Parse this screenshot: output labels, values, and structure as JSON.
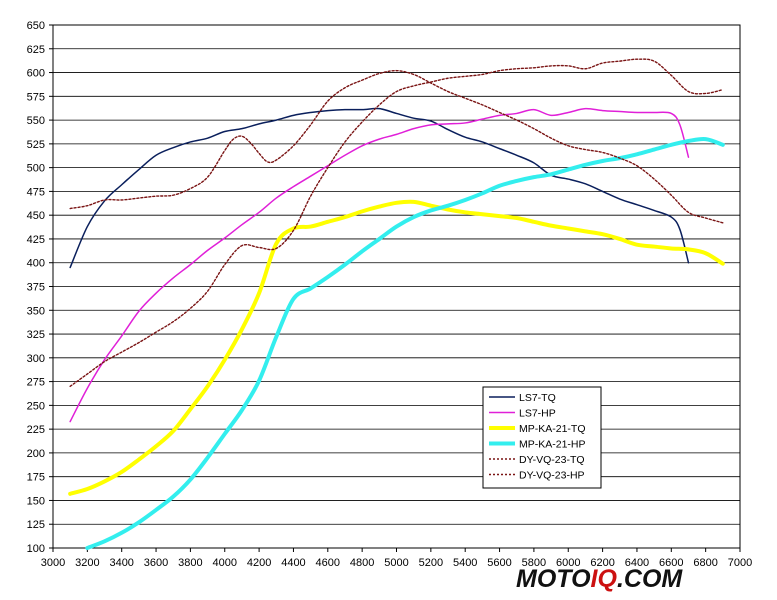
{
  "chart_data": {
    "type": "line",
    "title": "",
    "xlabel": "",
    "ylabel": "",
    "xlim": [
      3000,
      7000
    ],
    "ylim": [
      100,
      650
    ],
    "x_ticks": [
      3000,
      3200,
      3400,
      3600,
      3800,
      4000,
      4200,
      4400,
      4600,
      4800,
      5000,
      5200,
      5400,
      5600,
      5800,
      6000,
      6200,
      6400,
      6600,
      6800,
      7000
    ],
    "y_ticks": [
      100,
      125,
      150,
      175,
      200,
      225,
      250,
      275,
      300,
      325,
      350,
      375,
      400,
      425,
      450,
      475,
      500,
      525,
      550,
      575,
      600,
      625,
      650
    ],
    "grid": "horizontal",
    "legend_position": "lower-right",
    "series": [
      {
        "name": "LS7-TQ",
        "color": "#0a1f5c",
        "style": "solid",
        "x": [
          3100,
          3200,
          3300,
          3400,
          3500,
          3600,
          3700,
          3800,
          3900,
          4000,
          4100,
          4200,
          4300,
          4400,
          4500,
          4600,
          4700,
          4800,
          4900,
          5000,
          5100,
          5200,
          5300,
          5400,
          5500,
          5600,
          5700,
          5800,
          5900,
          6000,
          6100,
          6200,
          6300,
          6400,
          6500,
          6600,
          6650,
          6700
        ],
        "y": [
          395,
          438,
          465,
          482,
          498,
          513,
          521,
          527,
          531,
          538,
          541,
          546,
          550,
          555,
          558,
          560,
          561,
          561,
          562,
          557,
          552,
          549,
          540,
          532,
          527,
          520,
          513,
          505,
          492,
          488,
          483,
          475,
          467,
          461,
          455,
          448,
          435,
          400
        ]
      },
      {
        "name": "LS7-HP",
        "color": "#e020d8",
        "style": "solid",
        "x": [
          3100,
          3200,
          3300,
          3400,
          3500,
          3600,
          3700,
          3800,
          3900,
          4000,
          4100,
          4200,
          4300,
          4400,
          4500,
          4600,
          4700,
          4800,
          4900,
          5000,
          5100,
          5200,
          5300,
          5400,
          5500,
          5600,
          5700,
          5800,
          5900,
          6000,
          6100,
          6200,
          6300,
          6400,
          6500,
          6600,
          6650,
          6700
        ],
        "y": [
          233,
          268,
          298,
          323,
          349,
          368,
          384,
          398,
          413,
          426,
          440,
          453,
          468,
          480,
          491,
          502,
          513,
          523,
          530,
          535,
          541,
          545,
          546,
          547,
          551,
          555,
          557,
          561,
          555,
          558,
          562,
          560,
          559,
          558,
          558,
          557,
          545,
          511
        ]
      },
      {
        "name": "MP-KA-21-TQ",
        "color": "#ffff00",
        "style": "thick",
        "x": [
          3100,
          3200,
          3300,
          3400,
          3500,
          3600,
          3700,
          3800,
          3900,
          4000,
          4100,
          4200,
          4300,
          4400,
          4500,
          4600,
          4700,
          4800,
          4900,
          5000,
          5100,
          5200,
          5300,
          5400,
          5500,
          5600,
          5700,
          5800,
          5900,
          6000,
          6100,
          6200,
          6300,
          6400,
          6500,
          6600,
          6700,
          6800,
          6900
        ],
        "y": [
          157,
          162,
          170,
          180,
          193,
          207,
          223,
          246,
          270,
          298,
          330,
          368,
          420,
          436,
          438,
          443,
          448,
          454,
          459,
          463,
          464,
          460,
          456,
          453,
          451,
          449,
          447,
          443,
          439,
          436,
          433,
          430,
          425,
          419,
          417,
          415,
          414,
          410,
          399
        ]
      },
      {
        "name": "MP-KA-21-HP",
        "color": "#33eeee",
        "style": "thick",
        "x": [
          3200,
          3300,
          3400,
          3500,
          3600,
          3700,
          3800,
          3900,
          4000,
          4100,
          4200,
          4300,
          4400,
          4500,
          4600,
          4700,
          4800,
          4900,
          5000,
          5100,
          5200,
          5300,
          5400,
          5500,
          5600,
          5700,
          5800,
          5900,
          6000,
          6100,
          6200,
          6300,
          6400,
          6500,
          6600,
          6700,
          6800,
          6900
        ],
        "y": [
          100,
          107,
          116,
          127,
          140,
          154,
          172,
          195,
          220,
          245,
          276,
          322,
          362,
          373,
          385,
          398,
          412,
          425,
          438,
          448,
          455,
          460,
          466,
          473,
          481,
          486,
          490,
          493,
          498,
          503,
          507,
          510,
          514,
          519,
          524,
          528,
          530,
          524
        ]
      },
      {
        "name": "DY-VQ-23-TQ",
        "color": "#7a1414",
        "style": "dotted",
        "x": [
          3100,
          3200,
          3300,
          3400,
          3500,
          3600,
          3700,
          3800,
          3900,
          4000,
          4050,
          4100,
          4150,
          4200,
          4250,
          4300,
          4400,
          4500,
          4600,
          4700,
          4800,
          4900,
          5000,
          5100,
          5200,
          5300,
          5400,
          5500,
          5600,
          5700,
          5800,
          5900,
          6000,
          6100,
          6200,
          6300,
          6400,
          6500,
          6600,
          6700,
          6800,
          6900
        ],
        "y": [
          457,
          460,
          466,
          466,
          468,
          470,
          471,
          478,
          490,
          518,
          530,
          533,
          526,
          515,
          506,
          508,
          523,
          545,
          570,
          584,
          592,
          599,
          602,
          598,
          589,
          580,
          573,
          566,
          558,
          550,
          541,
          531,
          523,
          519,
          516,
          510,
          502,
          488,
          471,
          453,
          447,
          442
        ]
      },
      {
        "name": "DY-VQ-23-HP",
        "color": "#7a1414",
        "style": "dotted",
        "x": [
          3100,
          3200,
          3300,
          3400,
          3500,
          3600,
          3700,
          3800,
          3900,
          4000,
          4100,
          4200,
          4300,
          4400,
          4500,
          4600,
          4700,
          4800,
          4900,
          5000,
          5100,
          5200,
          5300,
          5400,
          5500,
          5600,
          5700,
          5800,
          5900,
          6000,
          6100,
          6200,
          6300,
          6400,
          6500,
          6600,
          6700,
          6800,
          6900
        ],
        "y": [
          270,
          283,
          296,
          306,
          316,
          327,
          338,
          352,
          370,
          398,
          418,
          416,
          415,
          434,
          470,
          500,
          527,
          548,
          566,
          580,
          586,
          590,
          594,
          596,
          598,
          602,
          604,
          605,
          607,
          607,
          604,
          610,
          612,
          614,
          612,
          597,
          580,
          578,
          582
        ]
      }
    ]
  },
  "logo": {
    "text_main": "MOTO",
    "text_accent": "IQ",
    "text_suffix": ".COM",
    "color_main": "#111111",
    "color_accent": "#cc1111"
  }
}
